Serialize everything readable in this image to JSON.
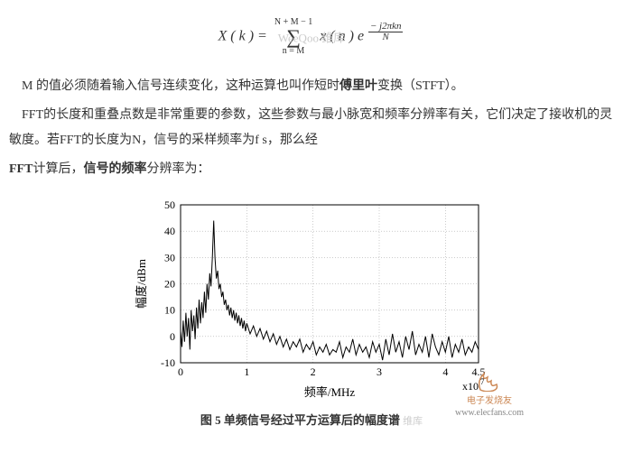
{
  "equation": {
    "lhs": "X ( k ) =",
    "sigma_top": "N + M − 1",
    "sigma_bottom": "n = M",
    "term1": "x ( n ) e",
    "exp_num": "− j2πkn",
    "exp_den": "N",
    "watermark": "WeeQoo 维库"
  },
  "paragraphs": {
    "p1a": "M 的值必须随着输入信号连续变化，这种运算也叫作短时",
    "p1b": "傅里叶",
    "p1c": "变换（STFT）。",
    "p2": "FFT的长度和重叠点数是非常重要的参数，这些参数与最小脉宽和频率分辨率有关，它们决定了接收机的灵敏度。若FFT的长度为N，信号的采样频率为f s，那么经",
    "p3a": "FFT",
    "p3b": "计算后，",
    "p3c": "信号的频率",
    "p3d": "分辨率为："
  },
  "chart": {
    "type": "line",
    "title": "",
    "xlabel": "频率/MHz",
    "ylabel": "幅度/dBm",
    "x_exponent": "x10",
    "x_exponent_sup": "7",
    "xlim": [
      0,
      4.5
    ],
    "ylim": [
      -10,
      50
    ],
    "xticks": [
      0,
      1,
      2,
      3,
      4,
      4.5
    ],
    "xtick_labels": [
      "0",
      "1",
      "2",
      "3",
      "4",
      "4.5"
    ],
    "yticks": [
      -10,
      0,
      10,
      20,
      30,
      40,
      50
    ],
    "ytick_labels": [
      "-10",
      "0",
      "10",
      "20",
      "30",
      "40",
      "50"
    ],
    "grid_color": "#999",
    "border_color": "#000",
    "background_color": "#ffffff",
    "line_color": "#000000",
    "line_width": 1,
    "tick_fontsize": 12,
    "label_fontsize": 13,
    "series": [
      [
        0.0,
        2
      ],
      [
        0.02,
        -4
      ],
      [
        0.04,
        6
      ],
      [
        0.06,
        -2
      ],
      [
        0.08,
        9
      ],
      [
        0.1,
        0
      ],
      [
        0.12,
        7
      ],
      [
        0.14,
        -5
      ],
      [
        0.16,
        10
      ],
      [
        0.18,
        2
      ],
      [
        0.2,
        8
      ],
      [
        0.22,
        -1
      ],
      [
        0.24,
        11
      ],
      [
        0.26,
        3
      ],
      [
        0.28,
        14
      ],
      [
        0.3,
        5
      ],
      [
        0.32,
        13
      ],
      [
        0.34,
        7
      ],
      [
        0.36,
        17
      ],
      [
        0.38,
        9
      ],
      [
        0.4,
        20
      ],
      [
        0.42,
        14
      ],
      [
        0.44,
        24
      ],
      [
        0.46,
        19
      ],
      [
        0.48,
        30
      ],
      [
        0.5,
        44
      ],
      [
        0.52,
        30
      ],
      [
        0.54,
        22
      ],
      [
        0.56,
        25
      ],
      [
        0.58,
        18
      ],
      [
        0.6,
        20
      ],
      [
        0.62,
        15
      ],
      [
        0.64,
        17
      ],
      [
        0.66,
        12
      ],
      [
        0.68,
        14
      ],
      [
        0.7,
        10
      ],
      [
        0.72,
        12
      ],
      [
        0.74,
        8
      ],
      [
        0.76,
        11
      ],
      [
        0.78,
        7
      ],
      [
        0.8,
        10
      ],
      [
        0.82,
        6
      ],
      [
        0.84,
        9
      ],
      [
        0.86,
        5
      ],
      [
        0.88,
        8
      ],
      [
        0.9,
        4
      ],
      [
        0.92,
        7
      ],
      [
        0.94,
        3
      ],
      [
        0.96,
        6
      ],
      [
        0.98,
        2
      ],
      [
        1.0,
        5
      ],
      [
        1.05,
        1
      ],
      [
        1.1,
        4
      ],
      [
        1.15,
        0
      ],
      [
        1.2,
        3
      ],
      [
        1.25,
        -1
      ],
      [
        1.3,
        2
      ],
      [
        1.35,
        -2
      ],
      [
        1.4,
        1
      ],
      [
        1.45,
        -3
      ],
      [
        1.5,
        0
      ],
      [
        1.55,
        -4
      ],
      [
        1.6,
        -1
      ],
      [
        1.65,
        -5
      ],
      [
        1.7,
        -2
      ],
      [
        1.75,
        -4
      ],
      [
        1.8,
        -1
      ],
      [
        1.85,
        -6
      ],
      [
        1.9,
        -3
      ],
      [
        1.95,
        -5
      ],
      [
        2.0,
        -2
      ],
      [
        2.05,
        -7
      ],
      [
        2.1,
        -4
      ],
      [
        2.15,
        -6
      ],
      [
        2.2,
        -3
      ],
      [
        2.25,
        -7
      ],
      [
        2.3,
        -5
      ],
      [
        2.35,
        -6
      ],
      [
        2.4,
        -2
      ],
      [
        2.45,
        -8
      ],
      [
        2.5,
        -4
      ],
      [
        2.55,
        -6
      ],
      [
        2.6,
        -1
      ],
      [
        2.65,
        -7
      ],
      [
        2.7,
        -3
      ],
      [
        2.75,
        -6
      ],
      [
        2.8,
        -4
      ],
      [
        2.85,
        -8
      ],
      [
        2.9,
        -2
      ],
      [
        2.95,
        -6
      ],
      [
        3.0,
        -3
      ],
      [
        3.05,
        -9
      ],
      [
        3.1,
        -1
      ],
      [
        3.15,
        -7
      ],
      [
        3.2,
        1
      ],
      [
        3.25,
        -6
      ],
      [
        3.3,
        -2
      ],
      [
        3.35,
        -8
      ],
      [
        3.4,
        0
      ],
      [
        3.45,
        -5
      ],
      [
        3.5,
        2
      ],
      [
        3.55,
        -7
      ],
      [
        3.6,
        -3
      ],
      [
        3.65,
        -6
      ],
      [
        3.7,
        0
      ],
      [
        3.75,
        -8
      ],
      [
        3.8,
        1
      ],
      [
        3.85,
        -4
      ],
      [
        3.9,
        -7
      ],
      [
        3.95,
        -2
      ],
      [
        4.0,
        -6
      ],
      [
        4.05,
        0
      ],
      [
        4.1,
        -8
      ],
      [
        4.15,
        -3
      ],
      [
        4.2,
        -6
      ],
      [
        4.25,
        -1
      ],
      [
        4.3,
        -7
      ],
      [
        4.35,
        -4
      ],
      [
        4.4,
        -6
      ],
      [
        4.45,
        -2
      ],
      [
        4.5,
        -5
      ]
    ]
  },
  "caption": {
    "text": "图 5   单频信号经过平方运算后的幅度谱",
    "watermark": "维库"
  },
  "logo": {
    "brand": "电子发烧友",
    "url": "www.elecfans.com"
  }
}
